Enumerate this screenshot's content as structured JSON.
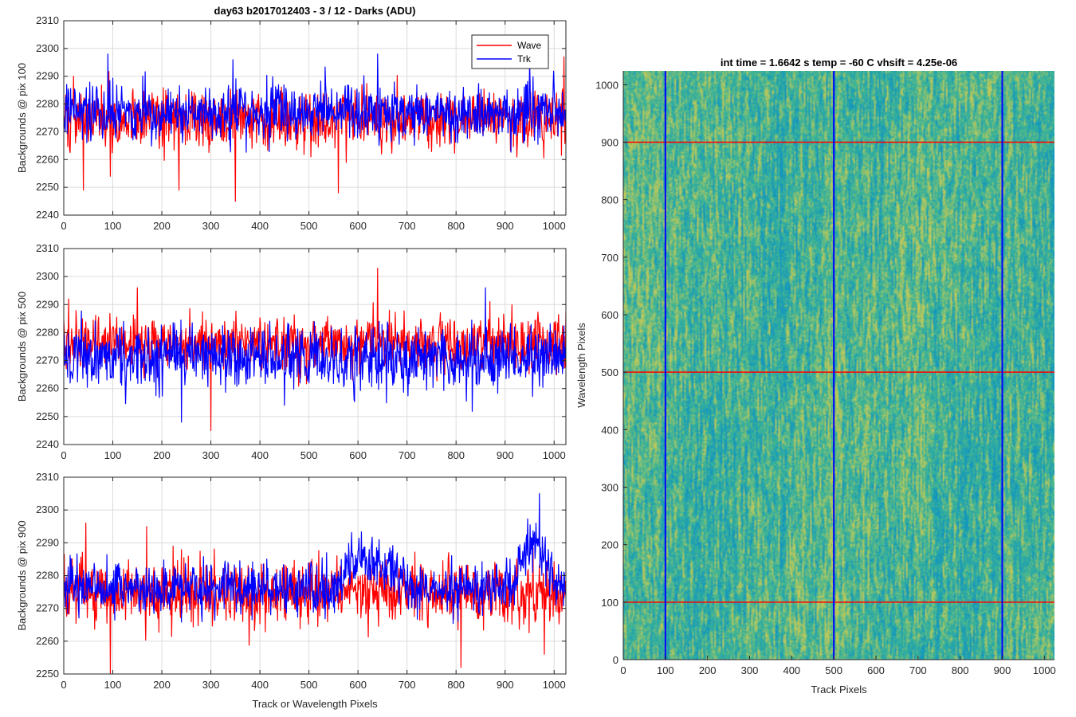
{
  "figure": {
    "suptitle": "day63 b2017012403 - 3 / 12 - Darks (ADU)"
  },
  "chart_data": [
    {
      "type": "line",
      "id": "pix100",
      "title": "day63 b2017012403 - 3 / 12 - Darks (ADU)",
      "xlabel": "",
      "ylabel": "Backgrounds @ pix 100",
      "xlim": [
        0,
        1024
      ],
      "ylim": [
        2240,
        2310
      ],
      "xticks": [
        0,
        100,
        200,
        300,
        400,
        500,
        600,
        700,
        800,
        900,
        1000
      ],
      "yticks": [
        2240,
        2250,
        2260,
        2270,
        2280,
        2290,
        2300,
        2310
      ],
      "grid": true,
      "legend": {
        "position": "top-right",
        "entries": [
          "Wave",
          "Trk"
        ]
      },
      "series": [
        {
          "name": "Wave",
          "color": "#ff0000",
          "mean": 2275,
          "std": 6.5,
          "peaks": [
            [
              20,
              2290
            ],
            [
              40,
              2249
            ],
            [
              95,
              2254
            ],
            [
              235,
              2249
            ],
            [
              350,
              2245
            ],
            [
              560,
              2248
            ],
            [
              1020,
              2297
            ]
          ]
        },
        {
          "name": "Trk",
          "color": "#0000ff",
          "mean": 2277,
          "std": 6,
          "peaks": [
            [
              90,
              2298
            ],
            [
              345,
              2296
            ],
            [
              640,
              2298
            ],
            [
              950,
              2296
            ]
          ]
        }
      ]
    },
    {
      "type": "line",
      "id": "pix500",
      "title": "",
      "xlabel": "",
      "ylabel": "Backgrounds @ pix 500",
      "xlim": [
        0,
        1024
      ],
      "ylim": [
        2240,
        2310
      ],
      "xticks": [
        0,
        100,
        200,
        300,
        400,
        500,
        600,
        700,
        800,
        900,
        1000
      ],
      "yticks": [
        2240,
        2250,
        2260,
        2270,
        2280,
        2290,
        2300,
        2310
      ],
      "grid": true,
      "series": [
        {
          "name": "Wave",
          "color": "#ff0000",
          "mean": 2276,
          "std": 6,
          "peaks": [
            [
              10,
              2292
            ],
            [
              300,
              2245
            ],
            [
              640,
              2303
            ],
            [
              150,
              2296
            ]
          ]
        },
        {
          "name": "Trk",
          "color": "#0000ff",
          "mean": 2271,
          "std": 7,
          "peaks": [
            [
              240,
              2248
            ],
            [
              860,
              2296
            ],
            [
              450,
              2254
            ]
          ]
        }
      ]
    },
    {
      "type": "line",
      "id": "pix900",
      "title": "",
      "xlabel": "Track or Wavelength Pixels",
      "ylabel": "Backgrounds @ pix 900",
      "xlim": [
        0,
        1024
      ],
      "ylim": [
        2250,
        2310
      ],
      "xticks": [
        0,
        100,
        200,
        300,
        400,
        500,
        600,
        700,
        800,
        900,
        1000
      ],
      "yticks": [
        2250,
        2260,
        2270,
        2280,
        2290,
        2300,
        2310
      ],
      "grid": true,
      "series": [
        {
          "name": "Wave",
          "color": "#ff0000",
          "mean": 2275,
          "std": 6,
          "peaks": [
            [
              45,
              2296
            ],
            [
              95,
              2250
            ],
            [
              810,
              2252
            ],
            [
              980,
              2256
            ]
          ]
        },
        {
          "name": "Trk",
          "color": "#0000ff",
          "mean": 2276,
          "std": 5,
          "bumps": [
            [
              600,
              2293
            ],
            [
              660,
              2290
            ],
            [
              960,
              2300
            ]
          ],
          "peaks": [
            [
              970,
              2305
            ]
          ]
        }
      ]
    },
    {
      "type": "heatmap",
      "id": "dark-image",
      "title": "int time = 1.6642 s    temp = -60 C    vhsift = 4.25e-06",
      "xlabel": "Track Pixels",
      "ylabel": "Wavelength Pixels",
      "xlim": [
        0,
        1024
      ],
      "ylim": [
        0,
        1024
      ],
      "xticks": [
        0,
        100,
        200,
        300,
        400,
        500,
        600,
        700,
        800,
        900,
        1000
      ],
      "yticks": [
        0,
        100,
        200,
        300,
        400,
        500,
        600,
        700,
        800,
        900,
        1000
      ],
      "colormap": "parula",
      "horizontal_markers": {
        "color": "#ff0000",
        "values": [
          100,
          500,
          900
        ]
      },
      "vertical_markers": {
        "color": "#0000ff",
        "values": [
          100,
          500,
          900
        ]
      }
    }
  ]
}
